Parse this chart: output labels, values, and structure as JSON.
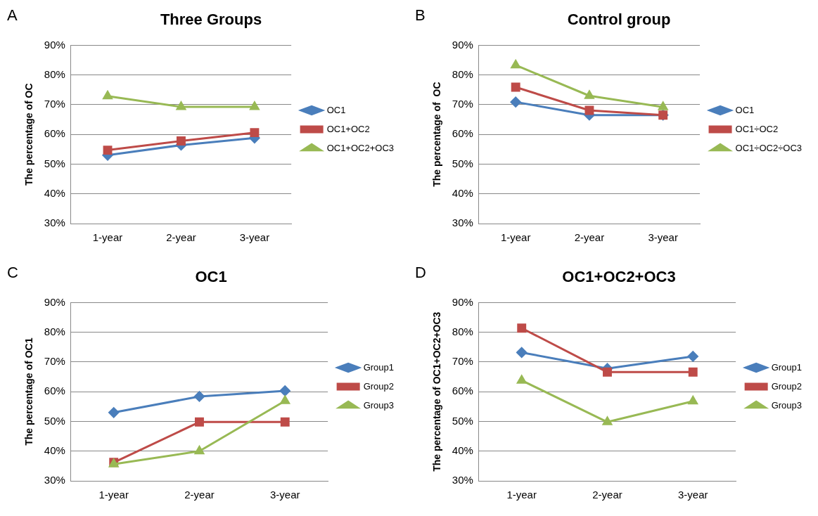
{
  "chart_data": [
    {
      "type": "line",
      "title": "Three Groups",
      "annotations": [
        "A"
      ],
      "ylabel": "The percentage of OC",
      "categories": [
        "1-year",
        "2-year",
        "3-year"
      ],
      "series": [
        {
          "name": "OC1",
          "color": "#4a7ebb",
          "marker": "diamond",
          "values": [
            53.0,
            56.4,
            58.8
          ]
        },
        {
          "name": "OC1+OC2",
          "color": "#be4b48",
          "marker": "square",
          "values": [
            54.7,
            57.8,
            60.6
          ]
        },
        {
          "name": "OC1+OC2+OC3",
          "color": "#98b954",
          "marker": "triangle",
          "values": [
            72.9,
            69.3,
            69.3
          ]
        }
      ],
      "ylim": [
        30,
        90
      ],
      "yticks": [
        {
          "value": 30,
          "label": "30%"
        },
        {
          "value": 40,
          "label": "40%"
        },
        {
          "value": 50,
          "label": "50%"
        },
        {
          "value": 60,
          "label": "60%"
        },
        {
          "value": 70,
          "label": "70%"
        },
        {
          "value": 80,
          "label": "80%"
        },
        {
          "value": 90,
          "label": "90%"
        }
      ],
      "grid": "y",
      "legend": "right",
      "line_style": "solid"
    },
    {
      "type": "line",
      "title": "Control group",
      "annotations": [
        "B"
      ],
      "ylabel": "The percentage of  OC",
      "categories": [
        "1-year",
        "2-year",
        "3-year"
      ],
      "series": [
        {
          "name": "OC1",
          "color": "#4a7ebb",
          "marker": "diamond",
          "values": [
            70.9,
            66.5,
            66.5
          ]
        },
        {
          "name": "OC1÷OC2",
          "color": "#be4b48",
          "marker": "square",
          "values": [
            75.9,
            68.1,
            66.5
          ]
        },
        {
          "name": "OC1÷OC2÷OC3",
          "color": "#98b954",
          "marker": "triangle",
          "values": [
            83.3,
            73.0,
            69.2
          ]
        }
      ],
      "ylim": [
        30,
        90
      ],
      "yticks": [
        {
          "value": 30,
          "label": "30%"
        },
        {
          "value": 40,
          "label": "40%"
        },
        {
          "value": 50,
          "label": "50%"
        },
        {
          "value": 60,
          "label": "60%"
        },
        {
          "value": 70,
          "label": "70%"
        },
        {
          "value": 80,
          "label": "80%"
        },
        {
          "value": 90,
          "label": "90%"
        }
      ],
      "grid": "y",
      "legend": "right",
      "line_style": "solid"
    },
    {
      "type": "line",
      "title": "OC1",
      "annotations": [
        "C"
      ],
      "ylabel": "The percentage of OC1",
      "categories": [
        "1-year",
        "2-year",
        "3-year"
      ],
      "series": [
        {
          "name": "Group1",
          "color": "#4a7ebb",
          "marker": "diamond",
          "values": [
            53.0,
            58.4,
            60.3
          ]
        },
        {
          "name": "Group2",
          "color": "#be4b48",
          "marker": "square",
          "values": [
            36.2,
            49.8,
            49.8
          ]
        },
        {
          "name": "Group3",
          "color": "#98b954",
          "marker": "triangle",
          "values": [
            35.6,
            40.0,
            56.9
          ]
        }
      ],
      "ylim": [
        30,
        90
      ],
      "yticks": [
        {
          "value": 30,
          "label": "30%"
        },
        {
          "value": 40,
          "label": "40%"
        },
        {
          "value": 50,
          "label": "50%"
        },
        {
          "value": 60,
          "label": "60%"
        },
        {
          "value": 70,
          "label": "70%"
        },
        {
          "value": 80,
          "label": "80%"
        },
        {
          "value": 90,
          "label": "90%"
        }
      ],
      "grid": "y",
      "legend": "right",
      "line_style": "solid"
    },
    {
      "type": "line",
      "title": "OC1+OC2+OC3",
      "annotations": [
        "D"
      ],
      "ylabel": "The percentage of OC1+OC2+OC3",
      "categories": [
        "1-year",
        "2-year",
        "3-year"
      ],
      "series": [
        {
          "name": "Group1",
          "color": "#4a7ebb",
          "marker": "diamond",
          "values": [
            73.2,
            67.8,
            71.9
          ]
        },
        {
          "name": "Group2",
          "color": "#be4b48",
          "marker": "square",
          "values": [
            81.4,
            66.6,
            66.6
          ]
        },
        {
          "name": "Group3",
          "color": "#98b954",
          "marker": "triangle",
          "values": [
            63.8,
            49.8,
            56.8
          ]
        }
      ],
      "ylim": [
        30,
        90
      ],
      "yticks": [
        {
          "value": 30,
          "label": "30%"
        },
        {
          "value": 40,
          "label": "40%"
        },
        {
          "value": 50,
          "label": "50%"
        },
        {
          "value": 60,
          "label": "60%"
        },
        {
          "value": 70,
          "label": "70%"
        },
        {
          "value": 80,
          "label": "80%"
        },
        {
          "value": 90,
          "label": "90%"
        }
      ],
      "grid": "y",
      "legend": "right",
      "line_style": "solid"
    }
  ]
}
